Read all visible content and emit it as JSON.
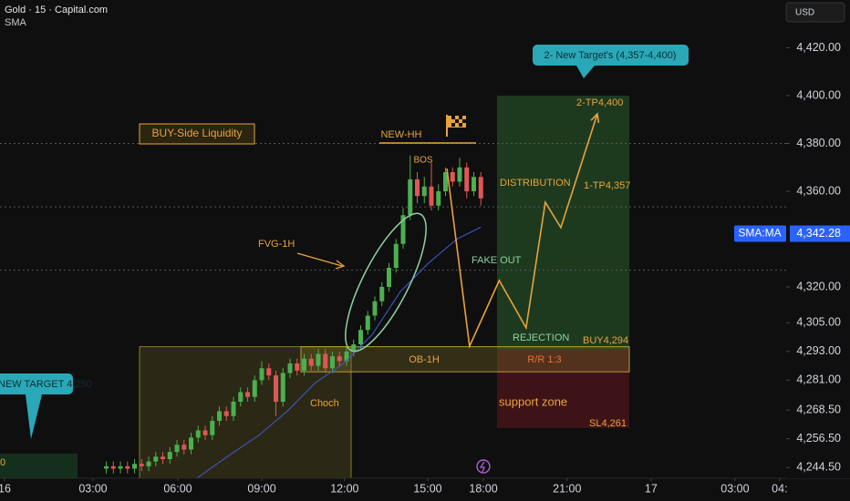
{
  "header": {
    "title": "Gold · 15 · Capital.com",
    "currency": "USD"
  },
  "chart_data": {
    "type": "candlestick",
    "x": [
      3.6,
      3.85,
      4.1,
      4.35,
      4.6,
      4.85,
      5.1,
      5.35,
      5.6,
      5.85,
      6.1,
      6.35,
      6.6,
      6.85,
      7.1,
      7.35,
      7.6,
      7.85,
      8.1,
      8.35,
      8.6,
      8.85,
      9.1,
      9.35,
      9.6,
      9.85,
      10.1,
      10.35,
      10.6,
      10.85,
      11.1,
      11.35,
      11.6,
      11.85,
      12.1,
      12.35,
      12.6,
      12.85,
      13.1,
      13.35,
      13.6,
      13.85,
      14.1,
      14.35,
      14.6,
      14.85,
      15.1,
      15.35,
      15.6,
      15.85,
      16.1,
      16.35,
      16.6,
      16.85
    ],
    "open": [
      4244,
      4245,
      4244,
      4245,
      4244,
      4246,
      4245,
      4247,
      4249,
      4248,
      4251,
      4254,
      4252,
      4257,
      4260,
      4258,
      4264,
      4268,
      4266,
      4272,
      4276,
      4274,
      4281,
      4286,
      4283,
      4272,
      4284,
      4288,
      4285,
      4290,
      4287,
      4292,
      4286,
      4291,
      4289,
      4293,
      4296,
      4302,
      4308,
      4314,
      4320,
      4328,
      4338,
      4350,
      4365,
      4358,
      4362,
      4354,
      4360,
      4368,
      4364,
      4370,
      4360,
      4366
    ],
    "high": [
      4247,
      4247,
      4247,
      4247,
      4248,
      4248,
      4249,
      4251,
      4251,
      4253,
      4256,
      4256,
      4259,
      4262,
      4262,
      4266,
      4270,
      4270,
      4274,
      4278,
      4278,
      4283,
      4289,
      4288,
      4285,
      4286,
      4290,
      4290,
      4292,
      4292,
      4294,
      4294,
      4293,
      4293,
      4295,
      4298,
      4304,
      4310,
      4316,
      4322,
      4330,
      4340,
      4353,
      4375,
      4368,
      4366,
      4372,
      4363,
      4370,
      4370,
      4374,
      4372,
      4368,
      4368
    ],
    "low": [
      4242,
      4242,
      4242,
      4242,
      4242,
      4243,
      4243,
      4245,
      4246,
      4246,
      4249,
      4250,
      4250,
      4255,
      4256,
      4256,
      4262,
      4264,
      4264,
      4270,
      4272,
      4272,
      4279,
      4281,
      4266,
      4270,
      4282,
      4283,
      4283,
      4285,
      4285,
      4284,
      4284,
      4287,
      4287,
      4291,
      4294,
      4300,
      4306,
      4312,
      4318,
      4326,
      4336,
      4348,
      4355,
      4355,
      4352,
      4352,
      4358,
      4362,
      4362,
      4357,
      4358,
      4354
    ],
    "close": [
      4245,
      4244,
      4245,
      4244,
      4246,
      4245,
      4247,
      4249,
      4248,
      4251,
      4254,
      4252,
      4257,
      4260,
      4258,
      4264,
      4268,
      4266,
      4272,
      4276,
      4274,
      4281,
      4286,
      4283,
      4272,
      4284,
      4288,
      4285,
      4290,
      4287,
      4292,
      4286,
      4291,
      4289,
      4293,
      4296,
      4302,
      4308,
      4314,
      4320,
      4328,
      4338,
      4350,
      4365,
      4358,
      4362,
      4354,
      4360,
      4368,
      4364,
      4370,
      4360,
      4366,
      4357
    ],
    "up_color": "#4caf50",
    "down_color": "#e05656",
    "series": [
      {
        "name": "SMA",
        "color": "#3f5bd9",
        "x": [
          6.8,
          8,
          9,
          10,
          11,
          12,
          13,
          14,
          15,
          16,
          16.85
        ],
        "values": [
          4240,
          4250,
          4258,
          4268,
          4280,
          4288,
          4300,
          4318,
          4330,
          4340,
          4345
        ]
      }
    ],
    "ylim": [
      4240,
      4440
    ],
    "yticks": [
      {
        "value": 4420,
        "label": "4,420.00"
      },
      {
        "value": 4400,
        "label": "4,400.00"
      },
      {
        "value": 4380,
        "label": "4,380.00"
      },
      {
        "value": 4360,
        "label": "4,360.00"
      },
      {
        "value": 4320,
        "label": "4,320.00"
      },
      {
        "value": 4305,
        "label": "4,305.00"
      },
      {
        "value": 4293,
        "label": "4,293.00"
      },
      {
        "value": 4281,
        "label": "4,281.00"
      },
      {
        "value": 4268.5,
        "label": "4,268.50"
      },
      {
        "value": 4256.5,
        "label": "4,256.50"
      },
      {
        "value": 4244.5,
        "label": "4,244.50"
      }
    ],
    "xlim": [
      -0.16,
      27.65
    ],
    "xticks": [
      {
        "value": 0,
        "label": "16"
      },
      {
        "value": 3.13,
        "label": "03:00"
      },
      {
        "value": 6.13,
        "label": "06:00"
      },
      {
        "value": 9.1,
        "label": "09:00"
      },
      {
        "value": 12.03,
        "label": "12:00"
      },
      {
        "value": 14.97,
        "label": "15:00"
      },
      {
        "value": 16.94,
        "label": "18:00"
      },
      {
        "value": 19.9,
        "label": "21:00"
      },
      {
        "value": 22.87,
        "label": "17"
      },
      {
        "value": 25.84,
        "label": "03:00"
      },
      {
        "value": 27.42,
        "label": "04:"
      }
    ],
    "last_price": {
      "value": 4342.28,
      "label": "4,342.28",
      "tag": "SMA:MA"
    },
    "levels": [
      4380,
      4353.5,
      4327
    ],
    "projection": {
      "color": "#e8a33d",
      "x": [
        15.65,
        16.45,
        17.5,
        18.45,
        19.13,
        19.68,
        20.97
      ],
      "values": [
        4369.5,
        4295.2,
        4322.7,
        4302.9,
        4355.4,
        4344.8,
        4392.4
      ]
    },
    "position": {
      "entry": 4294,
      "target": 4400,
      "stop": 4261
    },
    "zones": {
      "order_block": [
        4284.5,
        4295
      ],
      "range_box": [
        4240,
        4295
      ]
    },
    "annotations": {
      "liquidity": "BUY-Side Liquidity",
      "new_hh": "NEW-HH",
      "bos": "BOS",
      "fvg": "FVG-1H",
      "distribution": "DISTRIBUTION",
      "tp1": "1-TP4,357",
      "tp2": "2-TP4,400",
      "new_target": "2- New Target's (4,357-4,400)",
      "fake_out": "FAKE OUT",
      "rejection": "REJECTION",
      "buy": "BUY4,294",
      "ob": "OB-1H",
      "rr": "R/R 1:3",
      "support": "support zone",
      "sl": "SL4,261",
      "choch": "Choch",
      "old_target": "NEW TARGET 4,250",
      "cut_label": "0"
    }
  }
}
